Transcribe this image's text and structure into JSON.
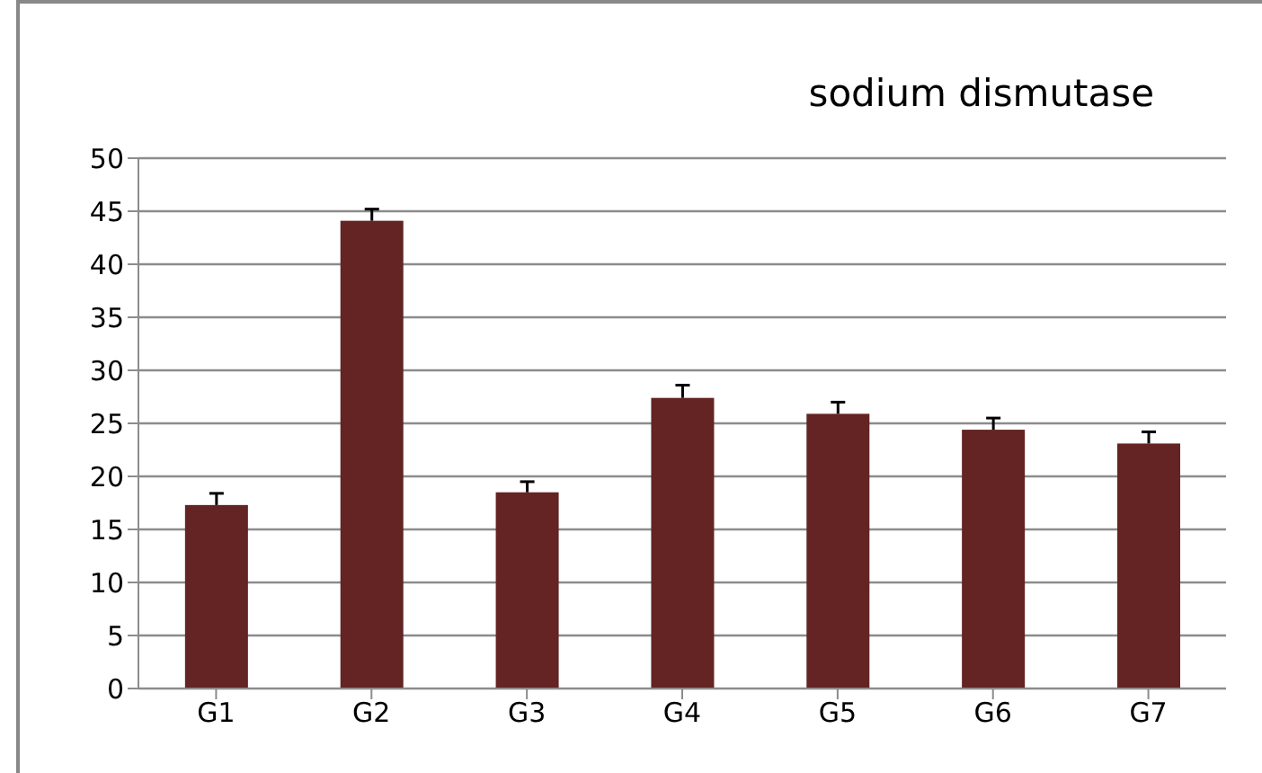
{
  "chart_data": {
    "type": "bar",
    "title": "sodium dismutase",
    "categories": [
      "G1",
      "G2",
      "G3",
      "G4",
      "G5",
      "G6",
      "G7"
    ],
    "values": [
      17.3,
      44.1,
      18.5,
      27.4,
      25.9,
      24.4,
      23.1
    ],
    "errors": [
      [
        17.3,
        18.4
      ],
      [
        44.1,
        45.2
      ],
      [
        18.5,
        19.5
      ],
      [
        27.4,
        28.6
      ],
      [
        25.9,
        27.0
      ],
      [
        24.4,
        25.5
      ],
      [
        23.1,
        24.2
      ]
    ],
    "color": "#632423",
    "ylim": [
      0,
      50
    ],
    "yticks": [
      0,
      5,
      10,
      15,
      20,
      25,
      30,
      35,
      40,
      45,
      50
    ],
    "grid": "y"
  }
}
